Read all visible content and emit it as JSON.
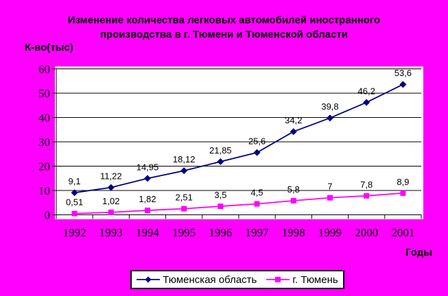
{
  "colors": {
    "background": "#FF00FF",
    "plot_background": "#FFFFFF",
    "grid_and_axis": "#000000",
    "text": "#000000",
    "series1": "#000080",
    "series2": "#FF00FF",
    "legend_border": "#000000"
  },
  "title": {
    "line1": "Изменение количества легковых автомобилей иностранного",
    "line2": "производства в г. Тюмени и Тюменской области"
  },
  "y_axis_label": "К-во(тыс)",
  "x_axis_label": "Годы",
  "legend": {
    "items": [
      {
        "label": "Тюменская область",
        "marker": "diamond",
        "color": "#000080"
      },
      {
        "label": "г. Тюмень",
        "marker": "square",
        "color": "#FF00FF"
      }
    ]
  },
  "chart_data": {
    "type": "line",
    "title": "Изменение количества легковых автомобилей иностранного производства в г. Тюмени и Тюменской области",
    "xlabel": "Годы",
    "ylabel": "К-во(тыс)",
    "categories": [
      "1992",
      "1993",
      "1994",
      "1995",
      "1996",
      "1997",
      "1998",
      "1999",
      "2000",
      "2001"
    ],
    "y_ticks": [
      "0",
      "10",
      "20",
      "30",
      "40",
      "50",
      "60"
    ],
    "ylim": [
      0,
      60
    ],
    "grid": true,
    "legend_position": "bottom",
    "series": [
      {
        "name": "Тюменская область",
        "color": "#000080",
        "marker": "diamond",
        "values": [
          9.1,
          11.22,
          14.95,
          18.12,
          21.85,
          25.6,
          34.2,
          39.8,
          46.2,
          53.6
        ],
        "labels": [
          "9,1",
          "11,22",
          "14,95",
          "18,12",
          "21,85",
          "25,6",
          "34,2",
          "39,8",
          "46,2",
          "53,6"
        ]
      },
      {
        "name": "г. Тюмень",
        "color": "#FF00FF",
        "marker": "square",
        "values": [
          0.51,
          1.02,
          1.82,
          2.51,
          3.5,
          4.5,
          5.8,
          7,
          7.8,
          8.9
        ],
        "labels": [
          "0,51",
          "1,02",
          "1,82",
          "2,51",
          "3,5",
          "4,5",
          "5,8",
          "7",
          "7,8",
          "8,9"
        ]
      }
    ]
  }
}
